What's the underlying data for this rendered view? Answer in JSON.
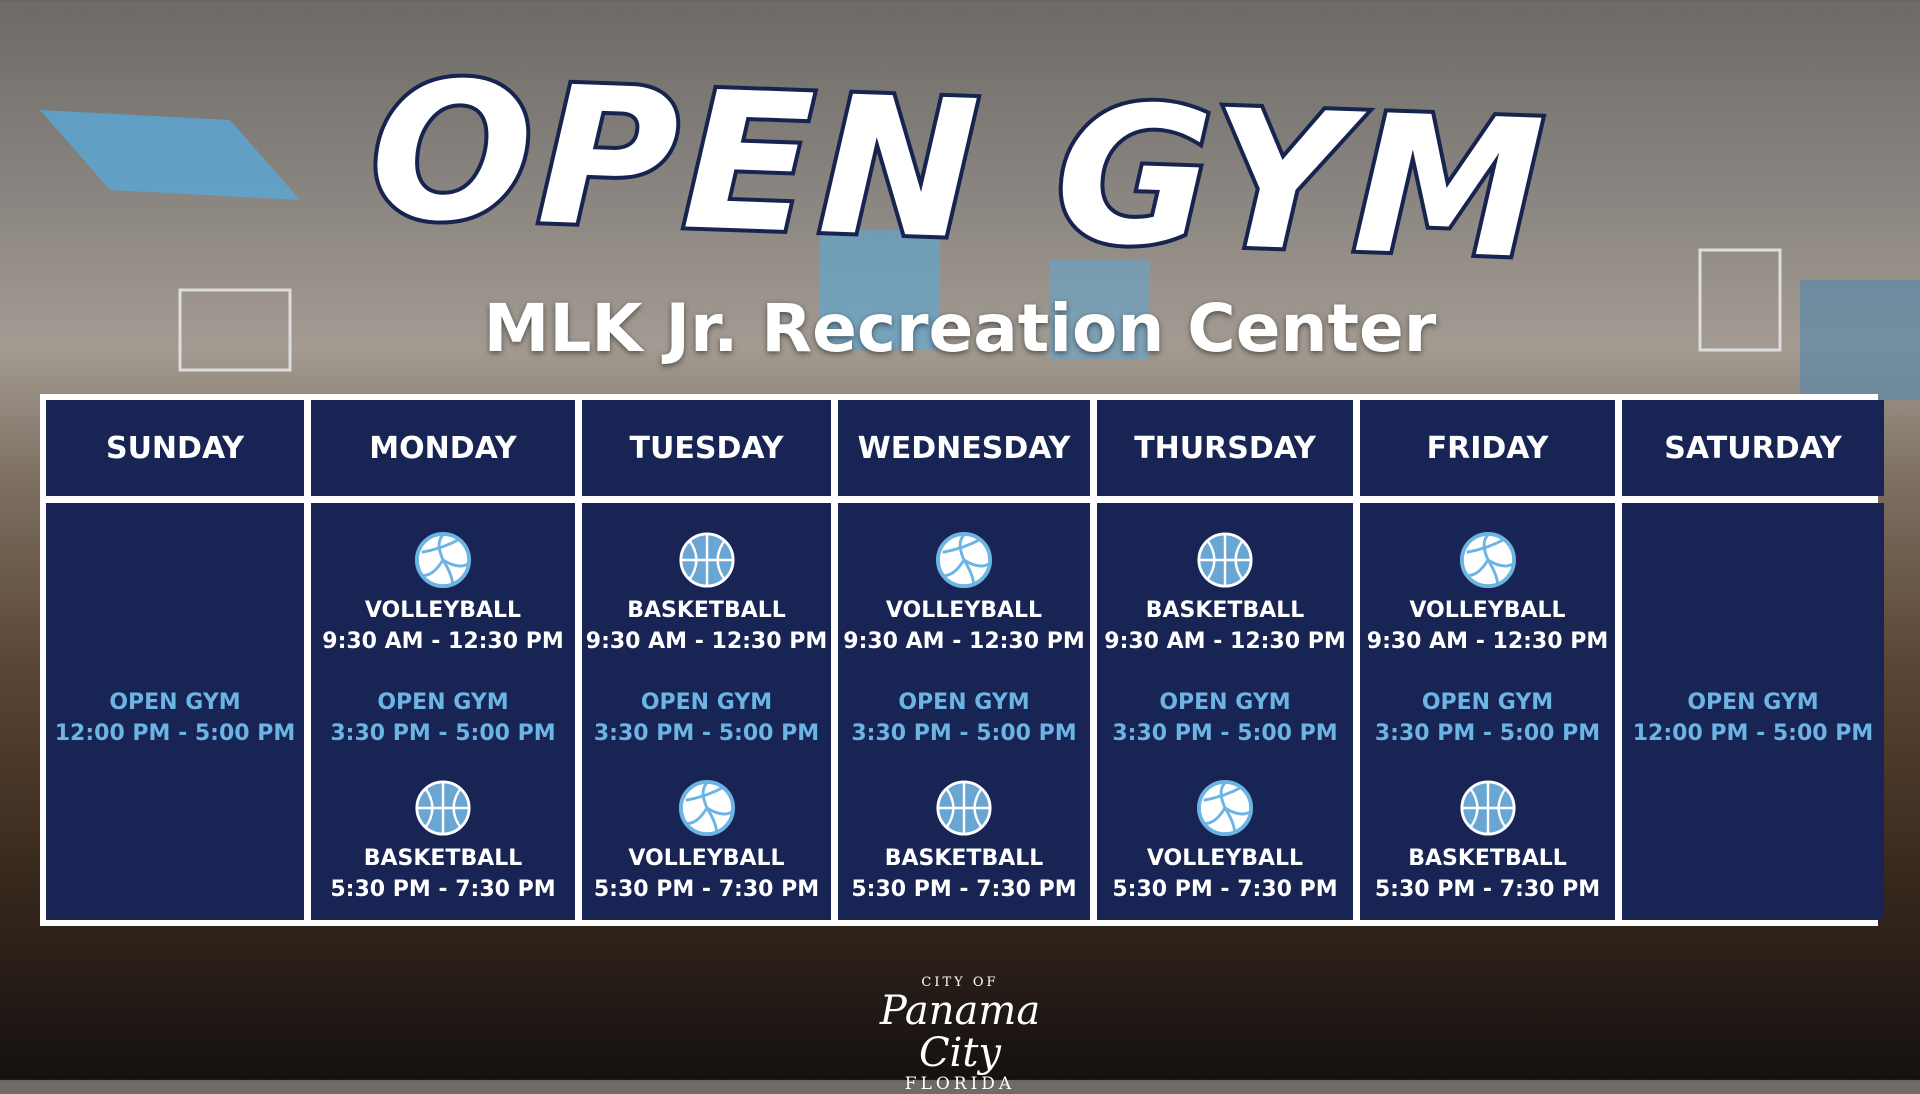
{
  "title": "OPEN GYM",
  "subtitle": "MLK Jr. Recreation Center",
  "colors": {
    "navy": "#172454",
    "light_blue": "#6cb4e4"
  },
  "days": [
    {
      "name": "SUNDAY",
      "open_gym": {
        "label": "OPEN GYM",
        "time": "12:00 PM - 5:00 PM"
      }
    },
    {
      "name": "MONDAY",
      "first": {
        "icon": "volleyball-icon",
        "label": "VOLLEYBALL",
        "time": "9:30 AM - 12:30 PM"
      },
      "open_gym": {
        "label": "OPEN GYM",
        "time": "3:30 PM - 5:00 PM"
      },
      "second": {
        "icon": "basketball-icon",
        "label": "BASKETBALL",
        "time": "5:30 PM - 7:30 PM"
      }
    },
    {
      "name": "TUESDAY",
      "first": {
        "icon": "basketball-icon",
        "label": "BASKETBALL",
        "time": "9:30 AM - 12:30 PM"
      },
      "open_gym": {
        "label": "OPEN GYM",
        "time": "3:30 PM - 5:00 PM"
      },
      "second": {
        "icon": "volleyball-icon",
        "label": "VOLLEYBALL",
        "time": "5:30 PM - 7:30 PM"
      }
    },
    {
      "name": "WEDNESDAY",
      "first": {
        "icon": "volleyball-icon",
        "label": "VOLLEYBALL",
        "time": "9:30 AM - 12:30 PM"
      },
      "open_gym": {
        "label": "OPEN GYM",
        "time": "3:30 PM - 5:00 PM"
      },
      "second": {
        "icon": "basketball-icon",
        "label": "BASKETBALL",
        "time": "5:30 PM - 7:30 PM"
      }
    },
    {
      "name": "THURSDAY",
      "first": {
        "icon": "basketball-icon",
        "label": "BASKETBALL",
        "time": "9:30 AM - 12:30 PM"
      },
      "open_gym": {
        "label": "OPEN GYM",
        "time": "3:30 PM - 5:00 PM"
      },
      "second": {
        "icon": "volleyball-icon",
        "label": "VOLLEYBALL",
        "time": "5:30 PM - 7:30 PM"
      }
    },
    {
      "name": "FRIDAY",
      "first": {
        "icon": "volleyball-icon",
        "label": "VOLLEYBALL",
        "time": "9:30 AM - 12:30 PM"
      },
      "open_gym": {
        "label": "OPEN GYM",
        "time": "3:30 PM - 5:00 PM"
      },
      "second": {
        "icon": "basketball-icon",
        "label": "BASKETBALL",
        "time": "5:30 PM - 7:30 PM"
      }
    },
    {
      "name": "SATURDAY",
      "open_gym": {
        "label": "OPEN GYM",
        "time": "12:00 PM - 5:00 PM"
      }
    }
  ],
  "logo": {
    "line1": "CITY OF",
    "line2": "Panama City",
    "line3": "FLORIDA"
  }
}
